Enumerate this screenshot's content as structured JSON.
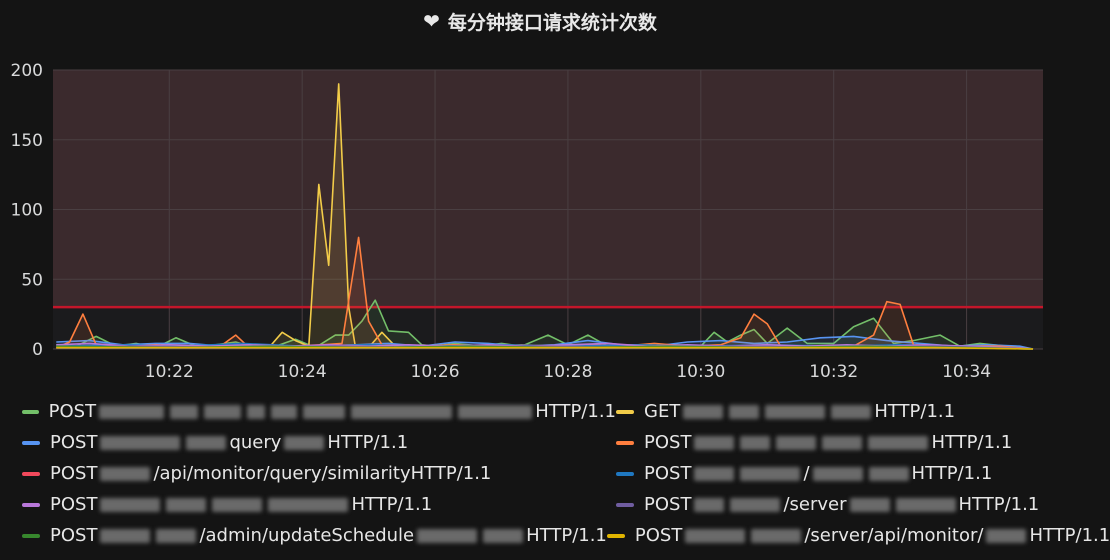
{
  "title": {
    "text": "每分钟接口请求统计次数",
    "icon": "heart-icon"
  },
  "chart_data": {
    "type": "line",
    "title": "每分钟接口请求统计次数",
    "xlabel": "",
    "ylabel": "",
    "x_tick_labels": [
      "10:22",
      "10:24",
      "10:26",
      "10:28",
      "10:30",
      "10:32",
      "10:34"
    ],
    "x_tick_minutes": [
      22,
      24,
      26,
      28,
      30,
      32,
      34
    ],
    "xlim_minutes": [
      20.25,
      35.15
    ],
    "y_ticks": [
      0,
      50,
      100,
      150,
      200
    ],
    "ylim": [
      0,
      200
    ],
    "threshold": {
      "value": 30,
      "color": "#c4162a"
    },
    "grid": true,
    "legend_position": "bottom",
    "series": [
      {
        "name": "POST ▒▒▒ HTTP/1.1",
        "legend_text": "HTTP/1.1",
        "color": "#73bf69",
        "points": [
          [
            20.3,
            3
          ],
          [
            20.6,
            2
          ],
          [
            20.9,
            9
          ],
          [
            21.2,
            2
          ],
          [
            21.5,
            4
          ],
          [
            21.8,
            1
          ],
          [
            22.1,
            8
          ],
          [
            22.4,
            2
          ],
          [
            22.7,
            3
          ],
          [
            23.0,
            5
          ],
          [
            23.3,
            1
          ],
          [
            23.6,
            2
          ],
          [
            23.9,
            7
          ],
          [
            24.2,
            1
          ],
          [
            24.5,
            10
          ],
          [
            24.7,
            10
          ],
          [
            24.9,
            20
          ],
          [
            25.1,
            35
          ],
          [
            25.3,
            13
          ],
          [
            25.6,
            12
          ],
          [
            25.8,
            3
          ],
          [
            26.0,
            2
          ],
          [
            26.3,
            4
          ],
          [
            26.7,
            2
          ],
          [
            27.0,
            4
          ],
          [
            27.3,
            2
          ],
          [
            27.7,
            10
          ],
          [
            28.0,
            3
          ],
          [
            28.3,
            10
          ],
          [
            28.6,
            2
          ],
          [
            29.0,
            3
          ],
          [
            29.3,
            1
          ],
          [
            29.6,
            3
          ],
          [
            30.0,
            2
          ],
          [
            30.2,
            12
          ],
          [
            30.4,
            5
          ],
          [
            30.6,
            10
          ],
          [
            30.8,
            14
          ],
          [
            31.0,
            4
          ],
          [
            31.3,
            15
          ],
          [
            31.6,
            4
          ],
          [
            32.0,
            4
          ],
          [
            32.3,
            16
          ],
          [
            32.6,
            22
          ],
          [
            32.9,
            4
          ],
          [
            33.2,
            6
          ],
          [
            33.6,
            10
          ],
          [
            33.9,
            2
          ],
          [
            34.2,
            4
          ],
          [
            34.6,
            2
          ],
          [
            35.0,
            0
          ]
        ]
      },
      {
        "name": "GET ▒▒▒ HTTP/1.1",
        "legend_text": "HTTP/1.1",
        "color": "#f2cc49",
        "points": [
          [
            20.3,
            1
          ],
          [
            21.0,
            1
          ],
          [
            22.0,
            1
          ],
          [
            23.0,
            1
          ],
          [
            23.5,
            1
          ],
          [
            23.7,
            12
          ],
          [
            23.9,
            6
          ],
          [
            24.0,
            4
          ],
          [
            24.1,
            2
          ],
          [
            24.25,
            118
          ],
          [
            24.4,
            60
          ],
          [
            24.55,
            190
          ],
          [
            24.7,
            30
          ],
          [
            24.8,
            2
          ],
          [
            25.0,
            1
          ],
          [
            25.2,
            12
          ],
          [
            25.4,
            2
          ],
          [
            26.0,
            1
          ],
          [
            27.0,
            1
          ],
          [
            28.0,
            1
          ],
          [
            29.0,
            1
          ],
          [
            30.0,
            1
          ],
          [
            31.0,
            1
          ],
          [
            32.0,
            1
          ],
          [
            33.0,
            1
          ],
          [
            34.0,
            1
          ],
          [
            35.0,
            0
          ]
        ]
      },
      {
        "name": "POST ▒▒▒ query HTTP/1.1",
        "legend_text": "HTTP/1.1",
        "color": "#5794f2",
        "points": [
          [
            20.3,
            5
          ],
          [
            20.8,
            6
          ],
          [
            21.3,
            3
          ],
          [
            21.8,
            4
          ],
          [
            22.3,
            4
          ],
          [
            22.8,
            2
          ],
          [
            23.3,
            3
          ],
          [
            23.8,
            1
          ],
          [
            24.3,
            2
          ],
          [
            24.8,
            3
          ],
          [
            25.3,
            4
          ],
          [
            25.8,
            2
          ],
          [
            26.3,
            5
          ],
          [
            26.8,
            4
          ],
          [
            27.3,
            2
          ],
          [
            27.8,
            3
          ],
          [
            28.3,
            6
          ],
          [
            28.8,
            3
          ],
          [
            29.3,
            2
          ],
          [
            29.8,
            5
          ],
          [
            30.3,
            6
          ],
          [
            30.8,
            4
          ],
          [
            31.3,
            5
          ],
          [
            31.8,
            8
          ],
          [
            32.3,
            9
          ],
          [
            32.8,
            6
          ],
          [
            33.3,
            4
          ],
          [
            33.8,
            2
          ],
          [
            34.3,
            3
          ],
          [
            34.8,
            2
          ],
          [
            35.0,
            0
          ]
        ]
      },
      {
        "name": "POST ▒▒▒ HTTP/1.1",
        "legend_text": "HTTP/1.1",
        "color": "#ff7f3f",
        "points": [
          [
            20.3,
            1
          ],
          [
            20.5,
            5
          ],
          [
            20.7,
            25
          ],
          [
            20.9,
            3
          ],
          [
            21.3,
            2
          ],
          [
            21.8,
            3
          ],
          [
            22.3,
            2
          ],
          [
            22.8,
            3
          ],
          [
            23.0,
            10
          ],
          [
            23.2,
            1
          ],
          [
            23.8,
            2
          ],
          [
            24.3,
            3
          ],
          [
            24.6,
            4
          ],
          [
            24.85,
            80
          ],
          [
            25.0,
            20
          ],
          [
            25.2,
            3
          ],
          [
            25.8,
            2
          ],
          [
            26.3,
            3
          ],
          [
            26.8,
            2
          ],
          [
            27.3,
            3
          ],
          [
            27.8,
            2
          ],
          [
            28.3,
            3
          ],
          [
            28.8,
            2
          ],
          [
            29.3,
            4
          ],
          [
            29.8,
            2
          ],
          [
            30.3,
            3
          ],
          [
            30.6,
            8
          ],
          [
            30.8,
            25
          ],
          [
            31.0,
            18
          ],
          [
            31.2,
            2
          ],
          [
            31.8,
            2
          ],
          [
            32.3,
            2
          ],
          [
            32.6,
            10
          ],
          [
            32.8,
            34
          ],
          [
            33.0,
            32
          ],
          [
            33.2,
            3
          ],
          [
            33.8,
            2
          ],
          [
            34.5,
            2
          ],
          [
            35.0,
            0
          ]
        ]
      },
      {
        "name": "POST /▒▒▒/api/monitor/query/similarity HTTP/1.1",
        "legend_text": "HTTP/1.1",
        "color": "#f2495c",
        "points": [
          [
            20.3,
            1
          ],
          [
            22.0,
            1
          ],
          [
            24.0,
            1
          ],
          [
            26.0,
            1
          ],
          [
            28.0,
            1
          ],
          [
            30.0,
            1
          ],
          [
            32.0,
            1
          ],
          [
            34.0,
            1
          ],
          [
            35.0,
            0
          ]
        ]
      },
      {
        "name": "POST /▒▒▒ HTTP/1.1",
        "legend_text": "HTTP/1.1",
        "color": "#1f78c1",
        "points": [
          [
            20.3,
            2
          ],
          [
            21.2,
            3
          ],
          [
            22.2,
            2
          ],
          [
            23.1,
            4
          ],
          [
            24.0,
            2
          ],
          [
            25.0,
            3
          ],
          [
            26.0,
            2
          ],
          [
            27.0,
            3
          ],
          [
            28.0,
            2
          ],
          [
            29.0,
            3
          ],
          [
            30.0,
            2
          ],
          [
            31.0,
            3
          ],
          [
            32.0,
            2
          ],
          [
            33.0,
            3
          ],
          [
            34.0,
            2
          ],
          [
            35.0,
            0
          ]
        ]
      },
      {
        "name": "POST /▒▒▒ HTTP/1.1",
        "legend_text": "HTTP/1.1",
        "color": "#b877d9",
        "points": [
          [
            20.3,
            3
          ],
          [
            20.8,
            4
          ],
          [
            21.4,
            2
          ],
          [
            22.0,
            3
          ],
          [
            22.6,
            2
          ],
          [
            23.2,
            3
          ],
          [
            23.8,
            2
          ],
          [
            24.4,
            3
          ],
          [
            25.0,
            2
          ],
          [
            25.6,
            3
          ],
          [
            26.2,
            2
          ],
          [
            26.8,
            3
          ],
          [
            27.4,
            2
          ],
          [
            28.0,
            3
          ],
          [
            28.6,
            4
          ],
          [
            29.2,
            2
          ],
          [
            29.8,
            3
          ],
          [
            30.4,
            2
          ],
          [
            31.0,
            3
          ],
          [
            31.6,
            2
          ],
          [
            32.2,
            3
          ],
          [
            32.8,
            2
          ],
          [
            33.4,
            3
          ],
          [
            34.0,
            2
          ],
          [
            34.6,
            1
          ],
          [
            35.0,
            0
          ]
        ]
      },
      {
        "name": "POST /serv▒▒▒ HTTP/1.1",
        "legend_text": "HTTP/1.1",
        "color": "#705da0",
        "points": [
          [
            20.3,
            1
          ],
          [
            21.5,
            2
          ],
          [
            23.0,
            1
          ],
          [
            24.5,
            2
          ],
          [
            26.0,
            1
          ],
          [
            27.5,
            2
          ],
          [
            29.0,
            1
          ],
          [
            30.5,
            2
          ],
          [
            32.0,
            1
          ],
          [
            33.5,
            2
          ],
          [
            35.0,
            0
          ]
        ]
      },
      {
        "name": "POST /▒▒▒/admin/updateSchedule HTTP/1.1",
        "legend_text": "HTTP/1.1",
        "color": "#37872d",
        "points": [
          [
            20.3,
            2
          ],
          [
            22.0,
            1
          ],
          [
            23.5,
            2
          ],
          [
            25.0,
            1
          ],
          [
            26.5,
            2
          ],
          [
            28.0,
            1
          ],
          [
            29.5,
            2
          ],
          [
            31.0,
            1
          ],
          [
            32.5,
            2
          ],
          [
            34.0,
            1
          ],
          [
            35.0,
            0
          ]
        ]
      },
      {
        "name": "POST /server/api/monitor/▒▒▒ HTTP/1.1",
        "legend_text": "HTTP/1.1",
        "color": "#e0b400",
        "points": [
          [
            20.3,
            1
          ],
          [
            21.5,
            1
          ],
          [
            23.0,
            1
          ],
          [
            24.5,
            1
          ],
          [
            26.0,
            1
          ],
          [
            27.5,
            1
          ],
          [
            29.0,
            1
          ],
          [
            30.5,
            1
          ],
          [
            32.0,
            1
          ],
          [
            33.5,
            1
          ],
          [
            35.0,
            0
          ]
        ]
      }
    ]
  },
  "legend": {
    "rows": [
      [
        {
          "series": 0,
          "method": "POST",
          "visible_path": "",
          "suffix": "HTTP/1.1",
          "blurs": [
            70,
            30,
            40,
            20,
            28,
            45,
            110,
            80
          ]
        },
        {
          "series": 1,
          "method": "GET",
          "visible_path": "",
          "suffix": "HTTP/1.1",
          "blurs": [
            40,
            30,
            60,
            40
          ]
        }
      ],
      [
        {
          "series": 2,
          "method": "POST",
          "visible_path": "query",
          "suffix": "HTTP/1.1",
          "blurs": [
            80,
            40,
            40
          ]
        },
        {
          "series": 3,
          "method": "POST",
          "visible_path": "",
          "suffix": "HTTP/1.1",
          "blurs": [
            40,
            30,
            40,
            40,
            60
          ]
        }
      ],
      [
        {
          "series": 4,
          "method": "POST",
          "visible_path": "/api/monitor/query/similarity",
          "suffix": "HTTP/1.1",
          "blurs": [
            50
          ]
        },
        {
          "series": 5,
          "method": "POST",
          "visible_path": "/",
          "suffix": "HTTP/1.1",
          "blurs": [
            40,
            60,
            50,
            40
          ]
        }
      ],
      [
        {
          "series": 6,
          "method": "POST",
          "visible_path": "",
          "suffix": "HTTP/1.1",
          "blurs": [
            60,
            40,
            50,
            80
          ]
        },
        {
          "series": 7,
          "method": "POST",
          "visible_path": "/server",
          "suffix": "HTTP/1.1",
          "blurs": [
            30,
            50,
            40,
            60
          ]
        }
      ],
      [
        {
          "series": 8,
          "method": "POST",
          "visible_path": "/admin/updateSchedule",
          "suffix": "HTTP/1.1",
          "blurs": [
            50,
            40,
            60,
            40
          ]
        },
        {
          "series": 9,
          "method": "POST",
          "visible_path": "/server/api/monitor/",
          "suffix": "HTTP/1.1",
          "blurs": [
            60,
            50,
            40
          ]
        }
      ]
    ]
  }
}
